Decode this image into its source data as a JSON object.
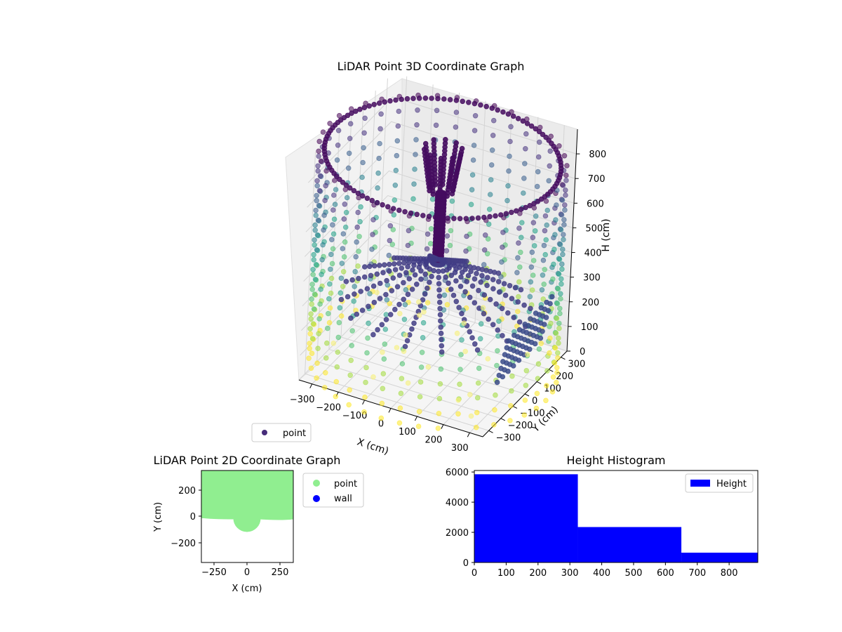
{
  "chart_data": [
    {
      "type": "scatter3d",
      "title": "LiDAR Point 3D Coordinate Graph",
      "xlabel": "X (cm)",
      "ylabel": "Y (cm)",
      "zlabel": "H (cm)",
      "xticks": [
        "−300",
        "−200",
        "−100",
        "0",
        "100",
        "200",
        "300"
      ],
      "yticks": [
        "−300",
        "−200",
        "−100",
        "0",
        "100",
        "200",
        "300"
      ],
      "zticks": [
        "0",
        "100",
        "200",
        "300",
        "400",
        "500",
        "600",
        "700",
        "800"
      ],
      "xlim": [
        -350,
        350
      ],
      "ylim": [
        -350,
        350
      ],
      "zlim": [
        0,
        900
      ],
      "legend": [
        "point"
      ],
      "legend_position": "bottom-left",
      "colormap": "viridis",
      "colors": {
        "point": "#472c7a",
        "dark": "#450c5f",
        "mid": "#3b528b",
        "teal": "#21918c",
        "light": "#addc30",
        "yellow": "#f6f07a"
      }
    },
    {
      "type": "scatter",
      "title": "LiDAR Point 2D Coordinate Graph",
      "xlabel": "X (cm)",
      "ylabel": "Y (cm)",
      "xlim": [
        -350,
        350
      ],
      "ylim": [
        -350,
        350
      ],
      "xticks": [
        "−250",
        "0",
        "250"
      ],
      "yticks": [
        "200",
        "0",
        "−200"
      ],
      "series": [
        {
          "name": "point",
          "color": "#90ee90",
          "region": "filled area with semicircle of radius 90 around origin"
        },
        {
          "name": "wall",
          "color": "#0000ff"
        }
      ],
      "legend_position": "outside-right"
    },
    {
      "type": "bar",
      "title": "Height Histogram",
      "bins": [
        [
          0,
          325
        ],
        [
          325,
          650
        ],
        [
          650,
          890
        ]
      ],
      "values": [
        5850,
        2350,
        650
      ],
      "xlim": [
        0,
        890
      ],
      "ylim": [
        0,
        6100
      ],
      "xticks": [
        "0",
        "100",
        "200",
        "300",
        "400",
        "500",
        "600",
        "700",
        "800"
      ],
      "yticks": [
        "0",
        "2000",
        "4000",
        "6000"
      ],
      "legend": [
        "Height"
      ],
      "legend_position": "top-right",
      "color": "#0000ff"
    }
  ]
}
